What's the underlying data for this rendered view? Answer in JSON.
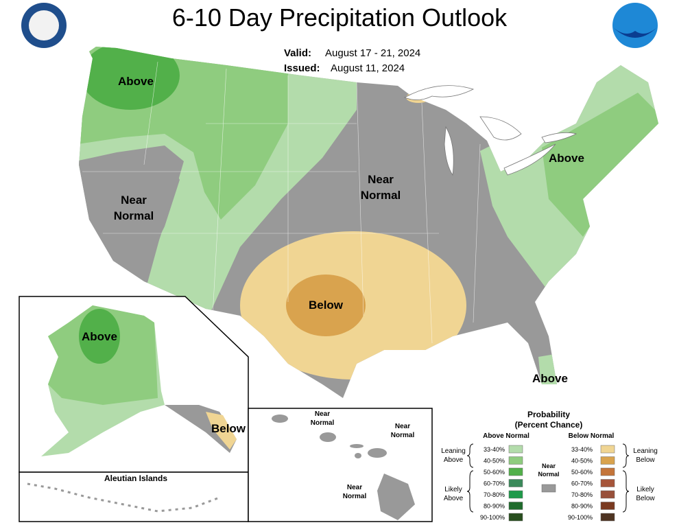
{
  "header": {
    "title": "6-10 Day Precipitation Outlook",
    "valid_label": "Valid:",
    "valid": "August 17 - 21, 2024",
    "issued_label": "Issued:",
    "issued": "August 11, 2024"
  },
  "map_labels": [
    {
      "lines": [
        "Above"
      ]
    },
    {
      "lines": [
        "Near",
        "Normal"
      ]
    },
    {
      "lines": [
        "Near",
        "Normal"
      ]
    },
    {
      "lines": [
        "Above"
      ]
    },
    {
      "lines": [
        "Below"
      ]
    },
    {
      "lines": [
        "Above"
      ]
    }
  ],
  "alaska": {
    "labels": [
      {
        "lines": [
          "Above"
        ]
      },
      {
        "lines": [
          "Below"
        ]
      }
    ],
    "aleutian_title": "Aleutian Islands"
  },
  "hawaii": {
    "labels": [
      {
        "lines": [
          "Near",
          "Normal"
        ]
      },
      {
        "lines": [
          "Near",
          "Normal"
        ]
      },
      {
        "lines": [
          "Near",
          "Normal"
        ]
      }
    ]
  },
  "legend": {
    "title_lines": [
      "Probability",
      "(Percent Chance)"
    ],
    "above_header": "Above Normal",
    "below_header": "Below Normal",
    "above": [
      {
        "label": "33-40%",
        "color": "#b3dcab"
      },
      {
        "label": "40-50%",
        "color": "#8fcc7f"
      },
      {
        "label": "50-60%",
        "color": "#52b04a"
      },
      {
        "label": "60-70%",
        "color": "#3a8a5a"
      },
      {
        "label": "70-80%",
        "color": "#1f9a4a"
      },
      {
        "label": "80-90%",
        "color": "#1f6b2c"
      },
      {
        "label": "90-100%",
        "color": "#284e1e"
      }
    ],
    "below": [
      {
        "label": "33-40%",
        "color": "#f0d593"
      },
      {
        "label": "40-50%",
        "color": "#d9a34e"
      },
      {
        "label": "50-60%",
        "color": "#c4753a"
      },
      {
        "label": "60-70%",
        "color": "#a6553a"
      },
      {
        "label": "70-80%",
        "color": "#98503a"
      },
      {
        "label": "80-90%",
        "color": "#7a3a20"
      },
      {
        "label": "90-100%",
        "color": "#4e3422"
      }
    ],
    "near": {
      "lines": [
        "Near",
        "Normal"
      ],
      "color": "#999999"
    },
    "leaning_above": [
      "Leaning",
      "Above"
    ],
    "likely_above": [
      "Likely",
      "Above"
    ],
    "leaning_below": [
      "Leaning",
      "Below"
    ],
    "likely_below": [
      "Likely",
      "Below"
    ]
  }
}
